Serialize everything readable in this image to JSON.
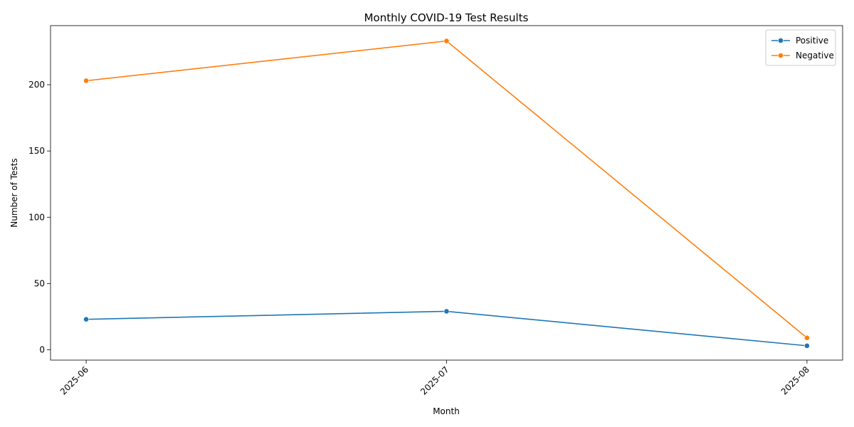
{
  "chart_data": {
    "type": "line",
    "title": "Monthly COVID-19 Test Results",
    "xlabel": "Month",
    "ylabel": "Number of Tests",
    "categories": [
      "2025-06",
      "2025-07",
      "2025-08"
    ],
    "series": [
      {
        "name": "Positive",
        "values": [
          23,
          29,
          3
        ],
        "color": "#1f77b4"
      },
      {
        "name": "Negative",
        "values": [
          203,
          233,
          9
        ],
        "color": "#ff7f0e"
      }
    ],
    "ylim": [
      -7.8,
      244.6
    ],
    "yticks": [
      0,
      50,
      100,
      150,
      200
    ],
    "grid": false,
    "legend_position": "top-right",
    "marker": "circle"
  }
}
